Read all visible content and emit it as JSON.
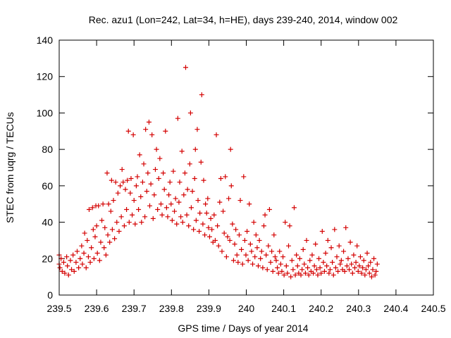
{
  "chart_data": {
    "type": "scatter",
    "title": "Rec. azu1 (Lon=242, Lat=34, h=HE), days 239-240, 2014, window 002",
    "xlabel": "GPS time / Days of year 2014",
    "ylabel": "STEC from uqrg / TECUs",
    "xlim": [
      239.5,
      240.5
    ],
    "ylim": [
      0,
      140
    ],
    "xticks": [
      239.5,
      239.6,
      239.7,
      239.8,
      239.9,
      240.0,
      240.1,
      240.2,
      240.3,
      240.4,
      240.5
    ],
    "xtick_labels": [
      "239.5",
      "239.6",
      "239.7",
      "239.8",
      "239.9",
      "240",
      "240.1",
      "240.2",
      "240.3",
      "240.4",
      "240.5"
    ],
    "yticks": [
      0,
      20,
      40,
      60,
      80,
      100,
      120,
      140
    ],
    "ytick_labels": [
      "0",
      "20",
      "40",
      "60",
      "80",
      "100",
      "120",
      "140"
    ],
    "grid": false,
    "marker": "+",
    "color": "#d40000",
    "series": [
      {
        "name": "STEC",
        "points": [
          [
            239.5,
            22
          ],
          [
            239.5,
            17
          ],
          [
            239.502,
            15
          ],
          [
            239.505,
            20
          ],
          [
            239.508,
            13
          ],
          [
            239.512,
            18
          ],
          [
            239.515,
            12
          ],
          [
            239.52,
            21
          ],
          [
            239.522,
            16
          ],
          [
            239.525,
            11
          ],
          [
            239.53,
            19
          ],
          [
            239.533,
            14
          ],
          [
            239.537,
            22
          ],
          [
            239.54,
            13
          ],
          [
            239.545,
            18
          ],
          [
            239.548,
            24
          ],
          [
            239.552,
            15
          ],
          [
            239.556,
            20
          ],
          [
            239.56,
            27
          ],
          [
            239.562,
            17
          ],
          [
            239.566,
            23
          ],
          [
            239.568,
            34
          ],
          [
            239.572,
            15
          ],
          [
            239.575,
            30
          ],
          [
            239.578,
            21
          ],
          [
            239.58,
            47
          ],
          [
            239.583,
            18
          ],
          [
            239.586,
            26
          ],
          [
            239.589,
            48
          ],
          [
            239.591,
            36
          ],
          [
            239.593,
            20
          ],
          [
            239.596,
            32
          ],
          [
            239.598,
            49
          ],
          [
            239.6,
            38
          ],
          [
            239.602,
            23
          ],
          [
            239.605,
            49
          ],
          [
            239.608,
            19
          ],
          [
            239.611,
            29
          ],
          [
            239.614,
            41
          ],
          [
            239.617,
            50
          ],
          [
            239.62,
            26
          ],
          [
            239.622,
            37
          ],
          [
            239.625,
            22
          ],
          [
            239.628,
            67
          ],
          [
            239.63,
            33
          ],
          [
            239.632,
            50
          ],
          [
            239.635,
            29
          ],
          [
            239.638,
            46
          ],
          [
            239.64,
            63
          ],
          [
            239.642,
            36
          ],
          [
            239.645,
            52
          ],
          [
            239.648,
            31
          ],
          [
            239.651,
            62
          ],
          [
            239.654,
            40
          ],
          [
            239.657,
            56
          ],
          [
            239.66,
            35
          ],
          [
            239.663,
            60
          ],
          [
            239.666,
            43
          ],
          [
            239.668,
            69
          ],
          [
            239.671,
            62
          ],
          [
            239.674,
            38
          ],
          [
            239.677,
            58
          ],
          [
            239.68,
            47
          ],
          [
            239.682,
            63
          ],
          [
            239.685,
            90
          ],
          [
            239.687,
            40
          ],
          [
            239.69,
            56
          ],
          [
            239.692,
            64
          ],
          [
            239.695,
            44
          ],
          [
            239.698,
            88
          ],
          [
            239.7,
            52
          ],
          [
            239.703,
            39
          ],
          [
            239.706,
            60
          ],
          [
            239.709,
            65
          ],
          [
            239.712,
            47
          ],
          [
            239.715,
            77
          ],
          [
            239.718,
            54
          ],
          [
            239.72,
            40
          ],
          [
            239.723,
            62
          ],
          [
            239.726,
            72
          ],
          [
            239.729,
            43
          ],
          [
            239.731,
            91
          ],
          [
            239.734,
            57
          ],
          [
            239.737,
            67
          ],
          [
            239.74,
            95
          ],
          [
            239.742,
            49
          ],
          [
            239.745,
            61
          ],
          [
            239.748,
            88
          ],
          [
            239.751,
            42
          ],
          [
            239.754,
            55
          ],
          [
            239.757,
            69
          ],
          [
            239.76,
            80
          ],
          [
            239.763,
            47
          ],
          [
            239.766,
            64
          ],
          [
            239.769,
            75
          ],
          [
            239.772,
            50
          ],
          [
            239.775,
            44
          ],
          [
            239.778,
            67
          ],
          [
            239.781,
            58
          ],
          [
            239.784,
            90
          ],
          [
            239.787,
            48
          ],
          [
            239.79,
            43
          ],
          [
            239.793,
            55
          ],
          [
            239.796,
            62
          ],
          [
            239.799,
            50
          ],
          [
            239.802,
            41
          ],
          [
            239.805,
            68
          ],
          [
            239.808,
            46
          ],
          [
            239.811,
            53
          ],
          [
            239.814,
            39
          ],
          [
            239.817,
            97
          ],
          [
            239.82,
            51
          ],
          [
            239.822,
            62
          ],
          [
            239.825,
            43
          ],
          [
            239.828,
            79
          ],
          [
            239.83,
            40
          ],
          [
            239.833,
            55
          ],
          [
            239.836,
            67
          ],
          [
            239.838,
            125
          ],
          [
            239.841,
            44
          ],
          [
            239.843,
            58
          ],
          [
            239.846,
            38
          ],
          [
            239.849,
            72
          ],
          [
            239.851,
            100
          ],
          [
            239.853,
            48
          ],
          [
            239.856,
            57
          ],
          [
            239.859,
            36
          ],
          [
            239.862,
            64
          ],
          [
            239.864,
            80
          ],
          [
            239.866,
            41
          ],
          [
            239.869,
            91
          ],
          [
            239.871,
            52
          ],
          [
            239.874,
            35
          ],
          [
            239.876,
            45
          ],
          [
            239.879,
            73
          ],
          [
            239.881,
            110
          ],
          [
            239.884,
            39
          ],
          [
            239.886,
            63
          ],
          [
            239.889,
            33
          ],
          [
            239.891,
            50
          ],
          [
            239.894,
            45
          ],
          [
            239.897,
            53
          ],
          [
            239.899,
            37
          ],
          [
            239.902,
            32
          ],
          [
            239.905,
            42
          ],
          [
            239.908,
            36
          ],
          [
            239.911,
            29
          ],
          [
            239.914,
            44
          ],
          [
            239.917,
            30
          ],
          [
            239.92,
            88
          ],
          [
            239.923,
            38
          ],
          [
            239.926,
            27
          ],
          [
            239.929,
            51
          ],
          [
            239.932,
            64
          ],
          [
            239.935,
            24
          ],
          [
            239.938,
            46
          ],
          [
            239.941,
            34
          ],
          [
            239.944,
            65
          ],
          [
            239.947,
            21
          ],
          [
            239.95,
            32
          ],
          [
            239.953,
            53
          ],
          [
            239.956,
            30
          ],
          [
            239.958,
            80
          ],
          [
            239.96,
            60
          ],
          [
            239.963,
            39
          ],
          [
            239.966,
            19
          ],
          [
            239.969,
            28
          ],
          [
            239.972,
            36
          ],
          [
            239.975,
            22
          ],
          [
            239.978,
            18
          ],
          [
            239.981,
            33
          ],
          [
            239.984,
            52
          ],
          [
            239.987,
            25
          ],
          [
            239.99,
            17
          ],
          [
            239.993,
            65
          ],
          [
            239.996,
            30
          ],
          [
            239.999,
            22
          ],
          [
            240.002,
            35
          ],
          [
            240.005,
            19
          ],
          [
            240.008,
            50
          ],
          [
            240.011,
            28
          ],
          [
            240.014,
            24
          ],
          [
            240.017,
            17
          ],
          [
            240.02,
            40
          ],
          [
            240.023,
            21
          ],
          [
            240.026,
            33
          ],
          [
            240.029,
            26
          ],
          [
            240.032,
            16
          ],
          [
            240.035,
            30
          ],
          [
            240.038,
            20
          ],
          [
            240.041,
            24
          ],
          [
            240.044,
            15
          ],
          [
            240.047,
            38
          ],
          [
            240.05,
            44
          ],
          [
            240.053,
            22
          ],
          [
            240.056,
            14
          ],
          [
            240.059,
            27
          ],
          [
            240.062,
            47
          ],
          [
            240.065,
            18
          ],
          [
            240.068,
            24
          ],
          [
            240.071,
            13
          ],
          [
            240.074,
            33
          ],
          [
            240.077,
            21
          ],
          [
            240.08,
            19
          ],
          [
            240.083,
            15
          ],
          [
            240.086,
            12
          ],
          [
            240.089,
            24
          ],
          [
            240.092,
            17
          ],
          [
            240.095,
            13
          ],
          [
            240.098,
            21
          ],
          [
            240.101,
            11
          ],
          [
            240.104,
            40
          ],
          [
            240.107,
            16
          ],
          [
            240.11,
            12
          ],
          [
            240.113,
            27
          ],
          [
            240.116,
            38
          ],
          [
            240.119,
            10
          ],
          [
            240.122,
            19
          ],
          [
            240.125,
            14
          ],
          [
            240.128,
            48
          ],
          [
            240.131,
            11
          ],
          [
            240.134,
            22
          ],
          [
            240.137,
            16
          ],
          [
            240.14,
            12
          ],
          [
            240.143,
            20
          ],
          [
            240.146,
            11
          ],
          [
            240.149,
            14
          ],
          [
            240.152,
            25
          ],
          [
            240.155,
            17
          ],
          [
            240.158,
            12
          ],
          [
            240.161,
            30
          ],
          [
            240.164,
            15
          ],
          [
            240.167,
            11
          ],
          [
            240.17,
            19
          ],
          [
            240.173,
            13
          ],
          [
            240.176,
            22
          ],
          [
            240.179,
            12
          ],
          [
            240.182,
            16
          ],
          [
            240.185,
            28
          ],
          [
            240.188,
            14
          ],
          [
            240.191,
            11
          ],
          [
            240.194,
            20
          ],
          [
            240.197,
            15
          ],
          [
            240.2,
            12
          ],
          [
            240.203,
            35
          ],
          [
            240.206,
            18
          ],
          [
            240.209,
            13
          ],
          [
            240.212,
            23
          ],
          [
            240.215,
            16
          ],
          [
            240.218,
            30
          ],
          [
            240.221,
            12
          ],
          [
            240.224,
            14
          ],
          [
            240.227,
            26
          ],
          [
            240.23,
            18
          ],
          [
            240.233,
            11
          ],
          [
            240.236,
            36
          ],
          [
            240.239,
            15
          ],
          [
            240.242,
            21
          ],
          [
            240.245,
            13
          ],
          [
            240.248,
            27
          ],
          [
            240.251,
            17
          ],
          [
            240.254,
            19
          ],
          [
            240.257,
            14
          ],
          [
            240.26,
            24
          ],
          [
            240.263,
            13
          ],
          [
            240.266,
            37
          ],
          [
            240.269,
            16
          ],
          [
            240.272,
            20
          ],
          [
            240.275,
            14
          ],
          [
            240.278,
            29
          ],
          [
            240.281,
            17
          ],
          [
            240.284,
            12
          ],
          [
            240.287,
            22
          ],
          [
            240.29,
            15
          ],
          [
            240.293,
            18
          ],
          [
            240.296,
            27
          ],
          [
            240.299,
            13
          ],
          [
            240.302,
            16
          ],
          [
            240.305,
            21
          ],
          [
            240.308,
            12
          ],
          [
            240.311,
            15
          ],
          [
            240.314,
            19
          ],
          [
            240.317,
            11
          ],
          [
            240.32,
            14
          ],
          [
            240.323,
            23
          ],
          [
            240.326,
            16
          ],
          [
            240.329,
            12
          ],
          [
            240.332,
            18
          ],
          [
            240.335,
            10
          ],
          [
            240.338,
            14
          ],
          [
            240.341,
            20
          ],
          [
            240.344,
            11
          ],
          [
            240.347,
            13
          ],
          [
            240.35,
            17
          ]
        ]
      }
    ]
  }
}
